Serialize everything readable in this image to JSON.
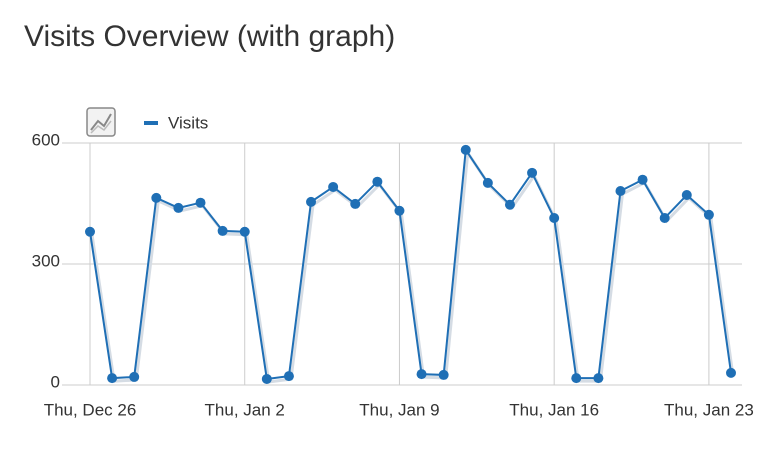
{
  "chart_data": {
    "type": "line",
    "title": "Visits Overview (with graph)",
    "categories": [
      "Thu, Dec 26",
      null,
      null,
      null,
      null,
      null,
      null,
      "Thu, Jan 2",
      null,
      null,
      null,
      null,
      null,
      null,
      "Thu, Jan 9",
      null,
      null,
      null,
      null,
      null,
      null,
      "Thu, Jan 16",
      null,
      null,
      null,
      null,
      null,
      null,
      "Thu, Jan 23",
      null
    ],
    "series": [
      {
        "name": "Visits",
        "color": "#1f6fb5",
        "values": [
          380,
          17,
          20,
          464,
          439,
          452,
          382,
          380,
          15,
          22,
          454,
          491,
          449,
          504,
          432,
          27,
          25,
          583,
          501,
          447,
          526,
          414,
          17,
          17,
          481,
          509,
          414,
          471,
          422,
          30
        ]
      }
    ],
    "ylim": [
      0,
      600
    ],
    "yticks": [
      0,
      300,
      600
    ],
    "grid": true
  }
}
